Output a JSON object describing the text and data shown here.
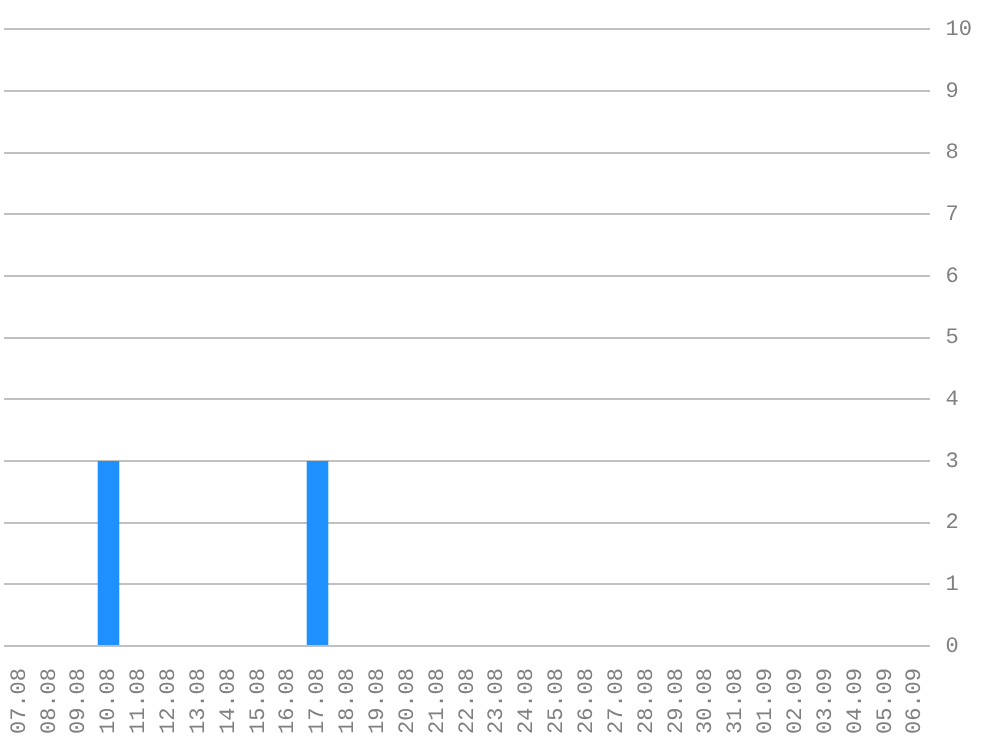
{
  "chart_data": {
    "type": "bar",
    "categories": [
      "07.08",
      "08.08",
      "09.08",
      "10.08",
      "11.08",
      "12.08",
      "13.08",
      "14.08",
      "15.08",
      "16.08",
      "17.08",
      "18.08",
      "19.08",
      "20.08",
      "21.08",
      "22.08",
      "23.08",
      "24.08",
      "25.08",
      "26.08",
      "27.08",
      "28.08",
      "29.08",
      "30.08",
      "31.08",
      "01.09",
      "02.09",
      "03.09",
      "04.09",
      "05.09",
      "06.09"
    ],
    "values": [
      0,
      0,
      0,
      3,
      0,
      0,
      0,
      0,
      0,
      0,
      3,
      0,
      0,
      0,
      0,
      0,
      0,
      0,
      0,
      0,
      0,
      0,
      0,
      0,
      0,
      0,
      0,
      0,
      0,
      0,
      0
    ],
    "color": "#1e90ff",
    "ylim": [
      0,
      10
    ],
    "yticks": [
      0,
      1,
      2,
      3,
      4,
      5,
      6,
      7,
      8,
      9,
      10
    ],
    "grid": "y",
    "legend": false
  }
}
